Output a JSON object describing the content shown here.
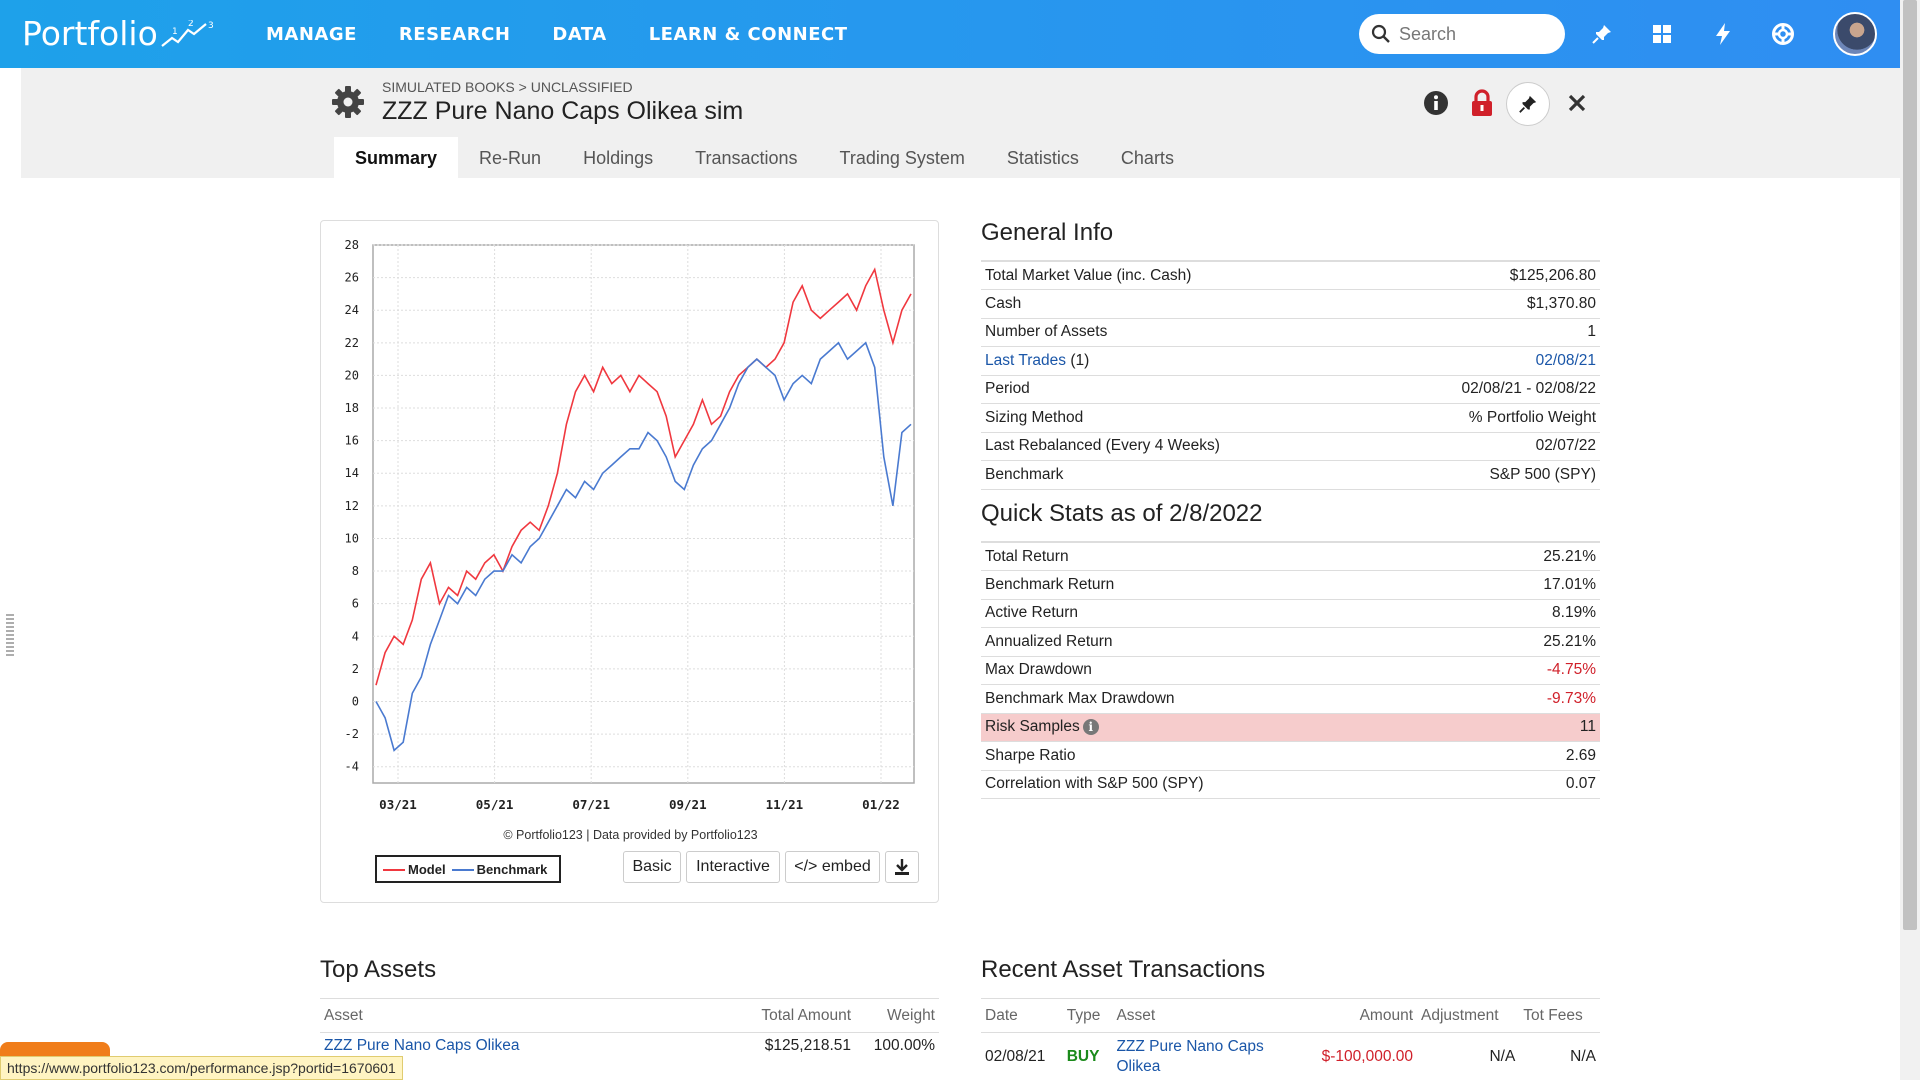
{
  "app": {
    "logo_text": "Portfolio",
    "logo_mark": "1 2 3"
  },
  "nav": {
    "items": [
      "MANAGE",
      "RESEARCH",
      "DATA",
      "LEARN & CONNECT"
    ]
  },
  "search": {
    "placeholder": "Search"
  },
  "header": {
    "breadcrumb": "SIMULATED BOOKS > UNCLASSIFIED",
    "title": "ZZZ Pure Nano Caps Olikea sim"
  },
  "tabs": [
    "Summary",
    "Re-Run",
    "Holdings",
    "Transactions",
    "Trading System",
    "Statistics",
    "Charts"
  ],
  "chart": {
    "copyright": "© Portfolio123 | Data provided by Portfolio123",
    "legend_model": "Model",
    "legend_benchmark": "Benchmark",
    "btn_basic": "Basic",
    "btn_interactive": "Interactive",
    "btn_embed": "</> embed"
  },
  "chart_data": {
    "type": "line",
    "x_ticks": [
      "03/21",
      "05/21",
      "07/21",
      "09/21",
      "11/21",
      "01/22"
    ],
    "y_ticks": [
      28,
      26,
      24,
      22,
      20,
      18,
      16,
      14,
      12,
      10,
      8,
      6,
      4,
      2,
      0,
      -2,
      -4
    ],
    "ylim": [
      -5,
      28
    ],
    "series": [
      {
        "name": "Model",
        "color": "#f0383f",
        "values": [
          1.0,
          3.0,
          4.0,
          3.5,
          5.0,
          7.5,
          8.5,
          6.0,
          7.0,
          6.5,
          8.0,
          7.5,
          8.5,
          9.0,
          8.0,
          9.5,
          10.5,
          11.0,
          10.5,
          12.0,
          14.0,
          17.0,
          19.0,
          20.0,
          19.0,
          20.5,
          19.5,
          20.0,
          19.0,
          20.0,
          19.5,
          19.0,
          17.5,
          15.0,
          16.0,
          17.0,
          18.5,
          17.0,
          17.5,
          19.0,
          20.0,
          20.5,
          21.0,
          20.5,
          21.0,
          22.0,
          24.5,
          25.5,
          24.0,
          23.5,
          24.0,
          24.5,
          25.0,
          24.0,
          25.5,
          26.5,
          24.0,
          22.0,
          24.0,
          25.0
        ]
      },
      {
        "name": "Benchmark",
        "color": "#4a7ad0",
        "values": [
          0.0,
          -1.0,
          -3.0,
          -2.5,
          0.5,
          1.5,
          3.5,
          5.0,
          6.5,
          6.0,
          7.0,
          6.5,
          7.5,
          8.0,
          8.0,
          9.0,
          8.5,
          9.5,
          10.0,
          11.0,
          12.0,
          13.0,
          12.5,
          13.5,
          13.0,
          14.0,
          14.5,
          15.0,
          15.5,
          15.5,
          16.5,
          16.0,
          15.0,
          13.5,
          13.0,
          14.5,
          15.5,
          16.0,
          17.0,
          18.0,
          19.5,
          20.5,
          21.0,
          20.5,
          20.0,
          18.5,
          19.5,
          20.0,
          19.5,
          21.0,
          21.5,
          22.0,
          21.0,
          21.5,
          22.0,
          20.5,
          15.0,
          12.0,
          16.5,
          17.0
        ]
      }
    ]
  },
  "general_info": {
    "title": "General Info",
    "rows": [
      {
        "label": "Total Market Value (inc. Cash)",
        "value": "$125,206.80"
      },
      {
        "label": "Cash",
        "value": "$1,370.80"
      },
      {
        "label": "Number of Assets",
        "value": "1"
      },
      {
        "label": "Last Trades",
        "label_suffix": "(1)",
        "value": "02/08/21"
      },
      {
        "label": "Period",
        "value": "02/08/21 - 02/08/22"
      },
      {
        "label": "Sizing Method",
        "value": "% Portfolio Weight"
      },
      {
        "label": "Last Rebalanced (Every 4 Weeks)",
        "value": "02/07/22"
      },
      {
        "label": "Benchmark",
        "value": "S&P 500 (SPY)"
      }
    ]
  },
  "quick_stats": {
    "title": "Quick Stats as of 2/8/2022",
    "rows": [
      {
        "label": "Total Return",
        "value": "25.21%"
      },
      {
        "label": "Benchmark Return",
        "value": "17.01%"
      },
      {
        "label": "Active Return",
        "value": "8.19%"
      },
      {
        "label": "Annualized Return",
        "value": "25.21%"
      },
      {
        "label": "Max Drawdown",
        "value": "-4.75%"
      },
      {
        "label": "Benchmark Max Drawdown",
        "value": "-9.73%"
      },
      {
        "label": "Risk Samples",
        "value": "11"
      },
      {
        "label": "Sharpe Ratio",
        "value": "2.69"
      },
      {
        "label": "Correlation with S&P 500 (SPY)",
        "value": "0.07"
      }
    ]
  },
  "top_assets": {
    "title": "Top Assets",
    "headers": [
      "Asset",
      "Total Amount",
      "Weight"
    ],
    "rows": [
      {
        "asset": "ZZZ Pure Nano Caps Olikea",
        "amount": "$125,218.51",
        "weight": "100.00%"
      }
    ]
  },
  "recent_tx": {
    "title": "Recent Asset Transactions",
    "headers": [
      "Date",
      "Type",
      "Asset",
      "Amount",
      "Adjustment",
      "Tot Fees"
    ],
    "rows": [
      {
        "date": "02/08/21",
        "type": "BUY",
        "asset_line1": "ZZZ Pure Nano Caps",
        "asset_line2": "Olikea",
        "amount": "$-100,000.00",
        "adjustment": "N/A",
        "fees": "N/A"
      }
    ]
  },
  "status_url": "https://www.portfolio123.com/performance.jsp?portid=1670601"
}
